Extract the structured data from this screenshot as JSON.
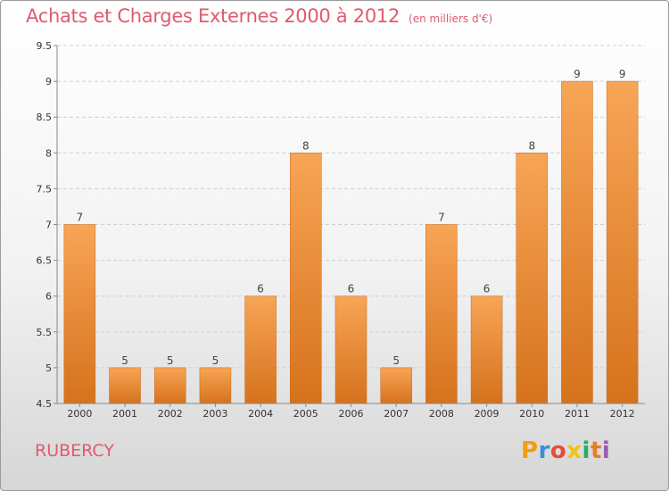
{
  "header": {
    "title": "Achats et Charges Externes 2000 à 2012",
    "subtitle": "(en milliers d'€)"
  },
  "footer": {
    "location": "RUBERCY",
    "logo": "Proxiti"
  },
  "colors": {
    "title": "#e05a6e",
    "bar_top": "#f7a556",
    "bar_bottom": "#d6721c",
    "logo_letters": [
      "#f39c12",
      "#3b8fd8",
      "#e74c3c",
      "#f1c40f",
      "#27ae60",
      "#e67e22",
      "#9b59b6"
    ]
  },
  "chart_data": {
    "type": "bar",
    "title": "Achats et Charges Externes 2000 à 2012",
    "categories": [
      "2000",
      "2001",
      "2002",
      "2003",
      "2004",
      "2005",
      "2006",
      "2007",
      "2008",
      "2009",
      "2010",
      "2011",
      "2012"
    ],
    "values": [
      7,
      5,
      5,
      5,
      6,
      8,
      6,
      5,
      7,
      6,
      8,
      9,
      9
    ],
    "ylim": [
      4.5,
      9.5
    ],
    "yticks": [
      "4.5",
      "5",
      "5.5",
      "6",
      "6.5",
      "7",
      "7.5",
      "8",
      "8.5",
      "9",
      "9.5"
    ],
    "xlabel": "",
    "ylabel": "",
    "grid": "horizontal-dashed"
  }
}
